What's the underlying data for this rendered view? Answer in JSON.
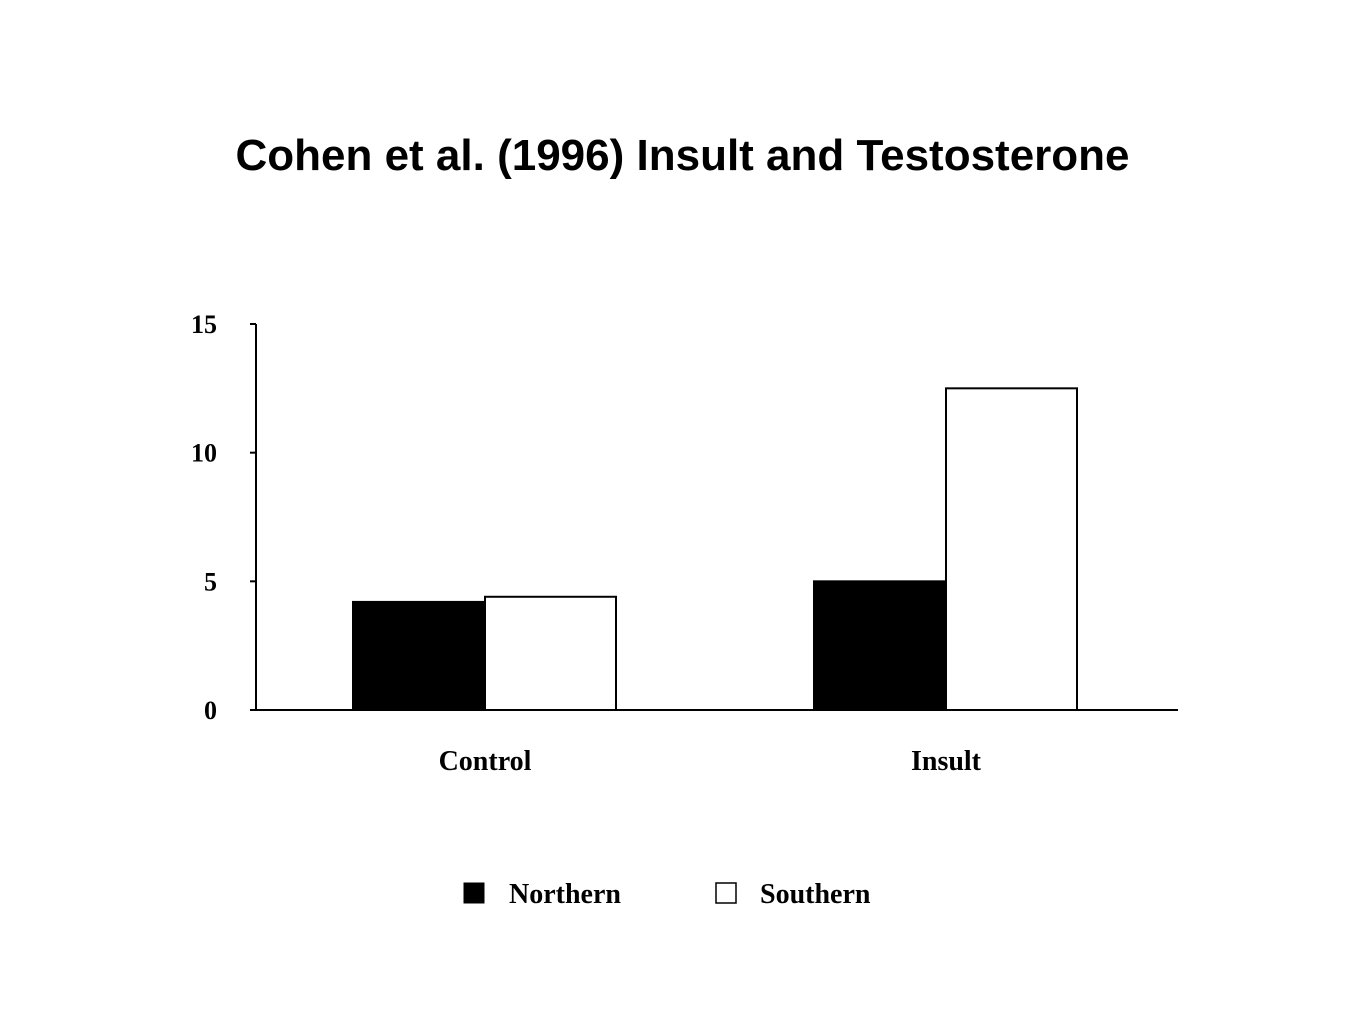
{
  "chart_data": {
    "type": "bar",
    "title": "Cohen et al. (1996) Insult and Testosterone",
    "xlabel": "",
    "ylabel": "",
    "categories": [
      "Control",
      "Insult"
    ],
    "series": [
      {
        "name": "Northern",
        "values": [
          4.2,
          5.0
        ],
        "color": "#000000"
      },
      {
        "name": "Southern",
        "values": [
          4.4,
          12.5
        ],
        "color": "#ffffff"
      }
    ],
    "ylim": [
      0,
      15
    ],
    "yticks": [
      "0",
      "5",
      "10",
      "15"
    ],
    "grid": false,
    "legend": "bottom-center"
  }
}
